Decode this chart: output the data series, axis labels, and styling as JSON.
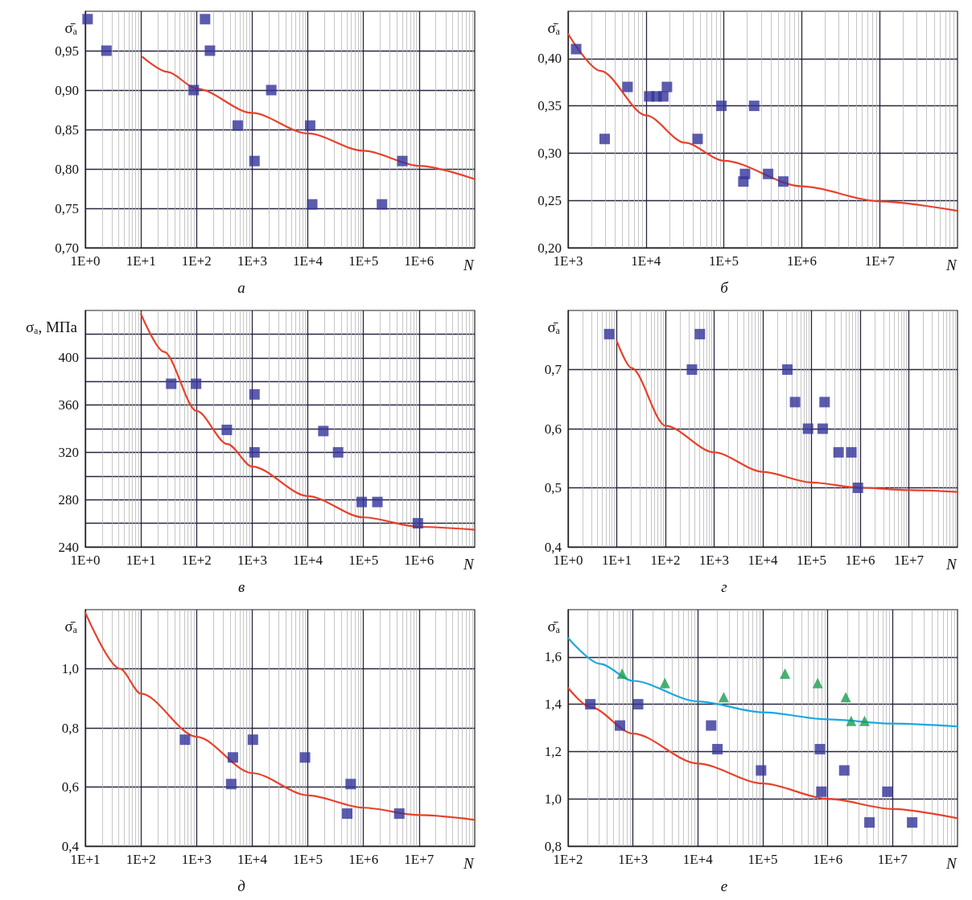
{
  "chart_data": [
    {
      "type": "scatter",
      "title": "а",
      "xlabel": "N",
      "ylabel": "σ̄ₐ",
      "log": "x",
      "grid": true,
      "xlim": [
        1,
        10000000
      ],
      "ylim": [
        0.7,
        1.0
      ],
      "xticks": [
        {
          "value": 1,
          "label": "1E+0"
        },
        {
          "value": 10,
          "label": "1E+1"
        },
        {
          "value": 100,
          "label": "1E+2"
        },
        {
          "value": 1000,
          "label": "1E+3"
        },
        {
          "value": 10000,
          "label": "1E+4"
        },
        {
          "value": 100000,
          "label": "1E+5"
        },
        {
          "value": 1000000,
          "label": "1E+6"
        }
      ],
      "yticks": [
        {
          "value": 0.7,
          "label": "0,70"
        },
        {
          "value": 0.75,
          "label": "0,75"
        },
        {
          "value": 0.8,
          "label": "0,80"
        },
        {
          "value": 0.85,
          "label": "0,85"
        },
        {
          "value": 0.9,
          "label": "0,90"
        },
        {
          "value": 0.95,
          "label": "0,95"
        }
      ],
      "series": [
        {
          "marker": "square",
          "color": "#33339a",
          "x": [
            1.1,
            2.4,
            89,
            142,
            174,
            550,
            1100,
            2200,
            11000,
            12000,
            215000,
            500000
          ],
          "values": [
            0.99,
            0.95,
            0.9,
            0.99,
            0.95,
            0.855,
            0.81,
            0.9,
            0.855,
            0.755,
            0.755,
            0.81
          ]
        },
        {
          "type": "line",
          "color": "#e8412a",
          "x": [
            10.7,
            30,
            100,
            1000,
            10000,
            100000,
            1000000,
            10000000
          ],
          "values": [
            0.942,
            0.923,
            0.902,
            0.871,
            0.845,
            0.823,
            0.804,
            0.787
          ]
        }
      ]
    },
    {
      "type": "scatter",
      "title": "б",
      "xlabel": "N",
      "ylabel": "σ̄ₐ",
      "log": "x",
      "grid": true,
      "xlim": [
        1000,
        100000000
      ],
      "ylim": [
        0.2,
        0.45
      ],
      "xticks": [
        {
          "value": 1000,
          "label": "1E+3"
        },
        {
          "value": 10000,
          "label": "1E+4"
        },
        {
          "value": 100000,
          "label": "1E+5"
        },
        {
          "value": 1000000,
          "label": "1E+6"
        },
        {
          "value": 10000000,
          "label": "1E+7"
        }
      ],
      "yticks": [
        {
          "value": 0.2,
          "label": "0,20"
        },
        {
          "value": 0.25,
          "label": "0,25"
        },
        {
          "value": 0.3,
          "label": "0,30"
        },
        {
          "value": 0.35,
          "label": "0,35"
        },
        {
          "value": 0.4,
          "label": "0,40"
        }
      ],
      "series": [
        {
          "marker": "square",
          "color": "#33339a",
          "x": [
            1270,
            2950,
            5800,
            11000,
            13700,
            16700,
            18600,
            46000,
            93000,
            245000,
            187000,
            178000,
            370000,
            580000
          ],
          "values": [
            0.41,
            0.315,
            0.37,
            0.36,
            0.36,
            0.36,
            0.37,
            0.315,
            0.35,
            0.35,
            0.278,
            0.27,
            0.278,
            0.27
          ]
        },
        {
          "type": "line",
          "color": "#e8412a",
          "x": [
            1000,
            2600,
            10000,
            31600,
            100000,
            1000000,
            10000000,
            100000000
          ],
          "values": [
            0.426,
            0.387,
            0.34,
            0.311,
            0.292,
            0.265,
            0.249,
            0.239
          ]
        }
      ]
    },
    {
      "type": "scatter",
      "title": "в",
      "xlabel": "N",
      "ylabel": "σₐ, МПа",
      "log": "x",
      "grid": true,
      "xlim": [
        1,
        10000000
      ],
      "ylim": [
        240,
        440
      ],
      "xticks": [
        {
          "value": 1,
          "label": "1E+0"
        },
        {
          "value": 10,
          "label": "1E+1"
        },
        {
          "value": 100,
          "label": "1E+2"
        },
        {
          "value": 1000,
          "label": "1E+3"
        },
        {
          "value": 10000,
          "label": "1E+4"
        },
        {
          "value": 100000,
          "label": "1E+5"
        },
        {
          "value": 1000000,
          "label": "1E+6"
        }
      ],
      "yticks": [
        240,
        {
          "value": 260,
          "label": null
        },
        280,
        {
          "value": 300,
          "label": null
        },
        320,
        {
          "value": 340,
          "label": null
        },
        360,
        {
          "value": 380,
          "label": null
        },
        400,
        {
          "value": 420,
          "label": null
        }
      ],
      "series": [
        {
          "marker": "square",
          "color": "#33339a",
          "x": [
            35,
            98,
            350,
            1100,
            1100,
            19000,
            35000,
            93000,
            178000,
            950000
          ],
          "values": [
            378,
            378,
            339,
            369,
            320,
            338,
            320,
            278,
            278,
            260
          ]
        },
        {
          "type": "line",
          "color": "#e8412a",
          "x": [
            10,
            26,
            100,
            360,
            1000,
            10000,
            100000,
            1000000,
            10000000
          ],
          "values": [
            437,
            405,
            355,
            327,
            308,
            283,
            265,
            257,
            254.6
          ]
        }
      ]
    },
    {
      "type": "scatter",
      "title": "г",
      "xlabel": "N",
      "ylabel": "σ̄ₐ",
      "log": "x",
      "grid": true,
      "xlim": [
        1,
        100000000
      ],
      "ylim": [
        0.4,
        0.8
      ],
      "xticks": [
        {
          "value": 1,
          "label": "1E+0"
        },
        {
          "value": 10,
          "label": "1E+1"
        },
        {
          "value": 100,
          "label": "1E+2"
        },
        {
          "value": 1000,
          "label": "1E+3"
        },
        {
          "value": 10000,
          "label": "1E+4"
        },
        {
          "value": 100000,
          "label": "1E+5"
        },
        {
          "value": 1000000,
          "label": "1E+6"
        },
        {
          "value": 10000000,
          "label": "1E+7"
        }
      ],
      "yticks": [
        {
          "value": 0.4,
          "label": "0,4"
        },
        {
          "value": 0.5,
          "label": "0,5"
        },
        {
          "value": 0.6,
          "label": "0,6"
        },
        {
          "value": 0.7,
          "label": "0,7"
        }
      ],
      "series": [
        {
          "marker": "square",
          "color": "#33339a",
          "x": [
            7,
            350,
            510,
            32000,
            46000,
            85000,
            186000,
            170000,
            360000,
            660000,
            900000
          ],
          "values": [
            0.76,
            0.7,
            0.76,
            0.7,
            0.645,
            0.6,
            0.645,
            0.6,
            0.56,
            0.56,
            0.5
          ]
        },
        {
          "type": "line",
          "color": "#e8412a",
          "x": [
            10,
            20,
            100,
            1000,
            10000,
            100000,
            1000000,
            10000000,
            100000000
          ],
          "values": [
            0.748,
            0.703,
            0.605,
            0.56,
            0.527,
            0.509,
            0.5,
            0.496,
            0.493
          ]
        }
      ]
    },
    {
      "type": "scatter",
      "title": "д",
      "xlabel": "N",
      "ylabel": "σ̄ₐ",
      "log": "x",
      "grid": true,
      "xlim": [
        10,
        100000000
      ],
      "ylim": [
        0.4,
        1.2
      ],
      "xticks": [
        {
          "value": 10,
          "label": "1E+1"
        },
        {
          "value": 100,
          "label": "1E+2"
        },
        {
          "value": 1000,
          "label": "1E+3"
        },
        {
          "value": 10000,
          "label": "1E+4"
        },
        {
          "value": 100000,
          "label": "1E+5"
        },
        {
          "value": 1000000,
          "label": "1E+6"
        },
        {
          "value": 10000000,
          "label": "1E+7"
        }
      ],
      "yticks": [
        {
          "value": 0.4,
          "label": "0,4"
        },
        {
          "value": 0.6,
          "label": "0,6"
        },
        {
          "value": 0.8,
          "label": "0,8"
        },
        {
          "value": 1.0,
          "label": "1,0"
        }
      ],
      "series": [
        {
          "marker": "square",
          "color": "#33339a",
          "x": [
            620,
            4500,
            4200,
            10300,
            89000,
            590000,
            510000,
            4400000
          ],
          "values": [
            0.76,
            0.7,
            0.61,
            0.76,
            0.7,
            0.61,
            0.51,
            0.51
          ]
        },
        {
          "type": "line",
          "color": "#e8412a",
          "x": [
            10,
            42,
            100,
            1000,
            10000,
            100000,
            1000000,
            10000000,
            100000000
          ],
          "values": [
            1.19,
            1.0,
            0.916,
            0.77,
            0.647,
            0.572,
            0.53,
            0.505,
            0.489
          ]
        }
      ]
    },
    {
      "type": "scatter",
      "title": "е",
      "xlabel": "N",
      "ylabel": "σ̄ₐ",
      "log": "x",
      "grid": true,
      "xlim": [
        100,
        100000000
      ],
      "ylim": [
        0.8,
        1.8
      ],
      "xticks": [
        {
          "value": 100,
          "label": "1E+2"
        },
        {
          "value": 1000,
          "label": "1E+3"
        },
        {
          "value": 10000,
          "label": "1E+4"
        },
        {
          "value": 100000,
          "label": "1E+5"
        },
        {
          "value": 1000000,
          "label": "1E+6"
        },
        {
          "value": 10000000,
          "label": "1E+7"
        }
      ],
      "yticks": [
        {
          "value": 0.8,
          "label": "0,8"
        },
        {
          "value": 1.0,
          "label": "1,0"
        },
        {
          "value": 1.2,
          "label": "1,2"
        },
        {
          "value": 1.4,
          "label": "1,4"
        },
        {
          "value": 1.6,
          "label": "1,6"
        }
      ],
      "series": [
        {
          "marker": "square",
          "color": "#33339a",
          "x": [
            220,
            630,
            1200,
            16000,
            20000,
            94000,
            760000,
            800000,
            1800000,
            4400000,
            8300000,
            20000000
          ],
          "values": [
            1.4,
            1.31,
            1.4,
            1.31,
            1.21,
            1.12,
            1.21,
            1.03,
            1.12,
            0.9,
            1.03,
            0.9
          ]
        },
        {
          "marker": "triangle",
          "color": "#1a9e50",
          "x": [
            680,
            3100,
            25000,
            220000,
            700000,
            1900000,
            2300000,
            3700000
          ],
          "values": [
            1.53,
            1.49,
            1.43,
            1.53,
            1.49,
            1.43,
            1.33,
            1.33
          ]
        },
        {
          "type": "line",
          "color": "#1aa8e0",
          "x": [
            100,
            310,
            1000,
            10000,
            100000,
            1000000,
            10000000,
            100000000
          ],
          "values": [
            1.68,
            1.571,
            1.499,
            1.412,
            1.366,
            1.336,
            1.318,
            1.306
          ]
        },
        {
          "type": "line",
          "color": "#e8412a",
          "x": [
            100,
            220,
            1000,
            10000,
            100000,
            1000000,
            10000000,
            100000000
          ],
          "values": [
            1.469,
            1.388,
            1.276,
            1.149,
            1.065,
            1.0,
            0.957,
            0.918
          ]
        }
      ]
    }
  ]
}
